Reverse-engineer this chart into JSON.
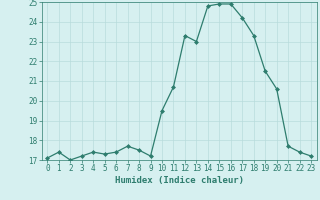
{
  "x": [
    0,
    1,
    2,
    3,
    4,
    5,
    6,
    7,
    8,
    9,
    10,
    11,
    12,
    13,
    14,
    15,
    16,
    17,
    18,
    19,
    20,
    21,
    22,
    23
  ],
  "y": [
    17.1,
    17.4,
    17.0,
    17.2,
    17.4,
    17.3,
    17.4,
    17.7,
    17.5,
    17.2,
    19.5,
    20.7,
    23.3,
    23.0,
    24.8,
    24.9,
    24.9,
    24.2,
    23.3,
    21.5,
    20.6,
    17.7,
    17.4,
    17.2
  ],
  "xlabel": "Humidex (Indice chaleur)",
  "line_color": "#2e7d6e",
  "bg_color": "#d6f0f0",
  "grid_color": "#b8dcdc",
  "ylim": [
    17,
    25
  ],
  "xlim": [
    -0.5,
    23.5
  ],
  "yticks": [
    17,
    18,
    19,
    20,
    21,
    22,
    23,
    24,
    25
  ],
  "xticks": [
    0,
    1,
    2,
    3,
    4,
    5,
    6,
    7,
    8,
    9,
    10,
    11,
    12,
    13,
    14,
    15,
    16,
    17,
    18,
    19,
    20,
    21,
    22,
    23
  ],
  "tick_fontsize": 5.5,
  "xlabel_fontsize": 6.5
}
